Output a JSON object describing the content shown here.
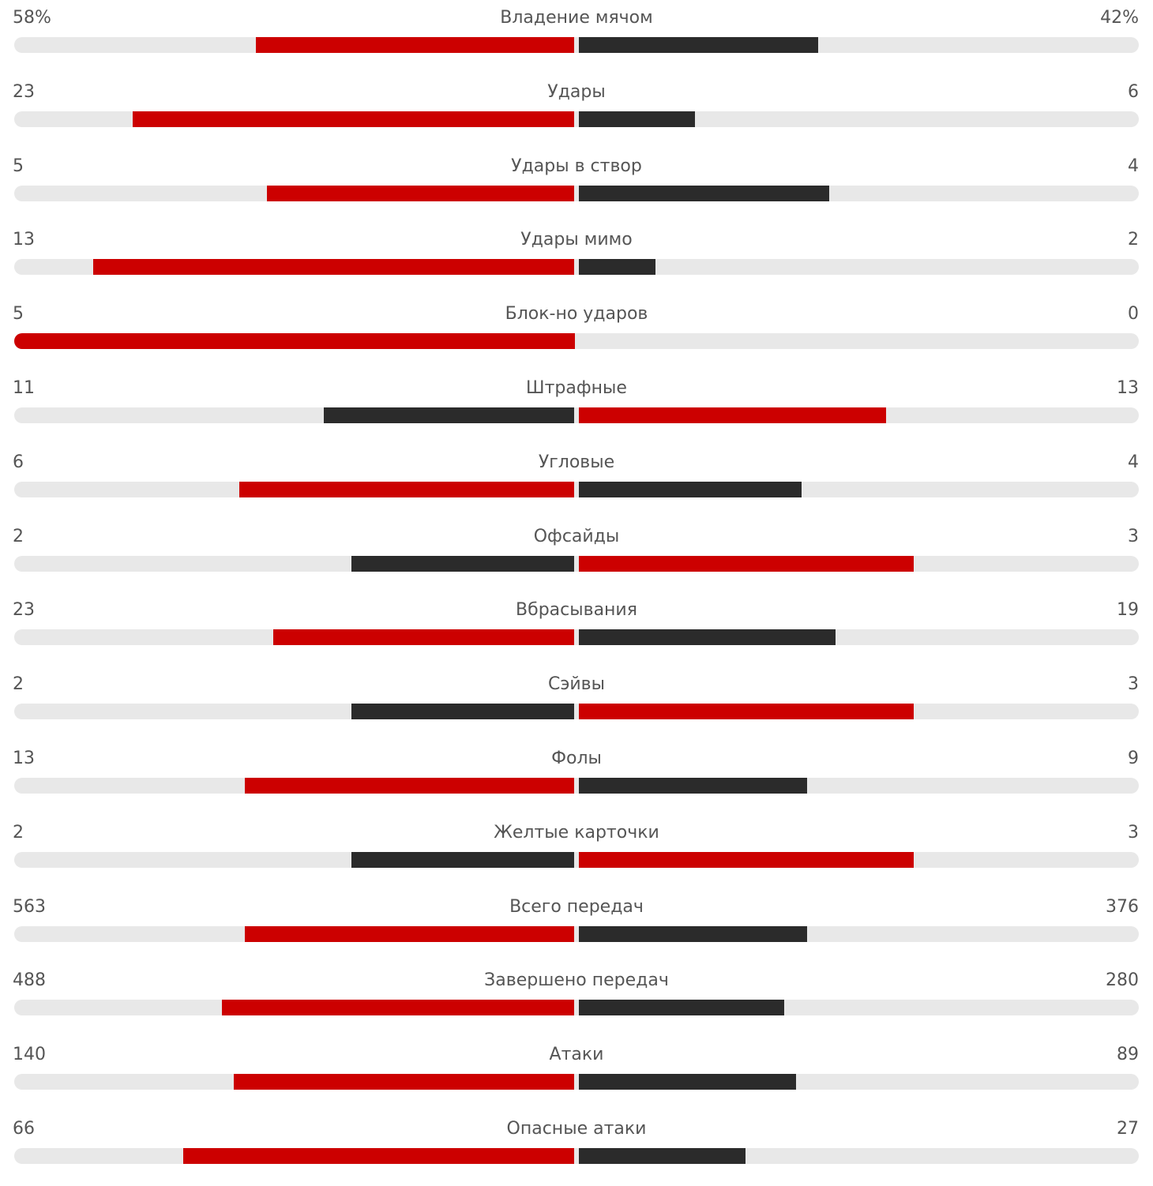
{
  "colors": {
    "leader": "#cc0000",
    "trailer": "#2b2b2b",
    "track": "#e8e8e8",
    "text": "#555555"
  },
  "chart_data": {
    "type": "bar",
    "orientation": "horizontal-diverging",
    "rows": [
      {
        "label": "Владение мячом",
        "left": "58%",
        "right": "42%",
        "left_value": 58,
        "right_value": 42,
        "left_share": 0.57,
        "right_share": 0.43,
        "leader": "left"
      },
      {
        "label": "Удары",
        "left": "23",
        "right": "6",
        "left_value": 23,
        "right_value": 6,
        "left_share": 0.79,
        "right_share": 0.21,
        "leader": "left"
      },
      {
        "label": "Удары в створ",
        "left": "5",
        "right": "4",
        "left_value": 5,
        "right_value": 4,
        "left_share": 0.55,
        "right_share": 0.45,
        "leader": "left"
      },
      {
        "label": "Удары мимо",
        "left": "13",
        "right": "2",
        "left_value": 13,
        "right_value": 2,
        "left_share": 0.86,
        "right_share": 0.14,
        "leader": "left"
      },
      {
        "label": "Блок-но ударов",
        "left": "5",
        "right": "0",
        "left_value": 5,
        "right_value": 0,
        "left_share": 1.0,
        "right_share": 0.0,
        "leader": "left"
      },
      {
        "label": "Штрафные",
        "left": "11",
        "right": "13",
        "left_value": 11,
        "right_value": 13,
        "left_share": 0.45,
        "right_share": 0.55,
        "leader": "right"
      },
      {
        "label": "Угловые",
        "left": "6",
        "right": "4",
        "left_value": 6,
        "right_value": 4,
        "left_share": 0.6,
        "right_share": 0.4,
        "leader": "left"
      },
      {
        "label": "Офсайды",
        "left": "2",
        "right": "3",
        "left_value": 2,
        "right_value": 3,
        "left_share": 0.4,
        "right_share": 0.6,
        "leader": "right"
      },
      {
        "label": "Вбрасывания",
        "left": "23",
        "right": "19",
        "left_value": 23,
        "right_value": 19,
        "left_share": 0.54,
        "right_share": 0.46,
        "leader": "left"
      },
      {
        "label": "Сэйвы",
        "left": "2",
        "right": "3",
        "left_value": 2,
        "right_value": 3,
        "left_share": 0.4,
        "right_share": 0.6,
        "leader": "right"
      },
      {
        "label": "Фолы",
        "left": "13",
        "right": "9",
        "left_value": 13,
        "right_value": 9,
        "left_share": 0.59,
        "right_share": 0.41,
        "leader": "left"
      },
      {
        "label": "Желтые карточки",
        "left": "2",
        "right": "3",
        "left_value": 2,
        "right_value": 3,
        "left_share": 0.4,
        "right_share": 0.6,
        "leader": "right"
      },
      {
        "label": "Всего передач",
        "left": "563",
        "right": "376",
        "left_value": 563,
        "right_value": 376,
        "left_share": 0.59,
        "right_share": 0.41,
        "leader": "left"
      },
      {
        "label": "Завершено передач",
        "left": "488",
        "right": "280",
        "left_value": 488,
        "right_value": 280,
        "left_share": 0.63,
        "right_share": 0.37,
        "leader": "left"
      },
      {
        "label": "Атаки",
        "left": "140",
        "right": "89",
        "left_value": 140,
        "right_value": 89,
        "left_share": 0.61,
        "right_share": 0.39,
        "leader": "left"
      },
      {
        "label": "Опасные атаки",
        "left": "66",
        "right": "27",
        "left_value": 66,
        "right_value": 27,
        "left_share": 0.7,
        "right_share": 0.3,
        "leader": "left"
      }
    ]
  }
}
